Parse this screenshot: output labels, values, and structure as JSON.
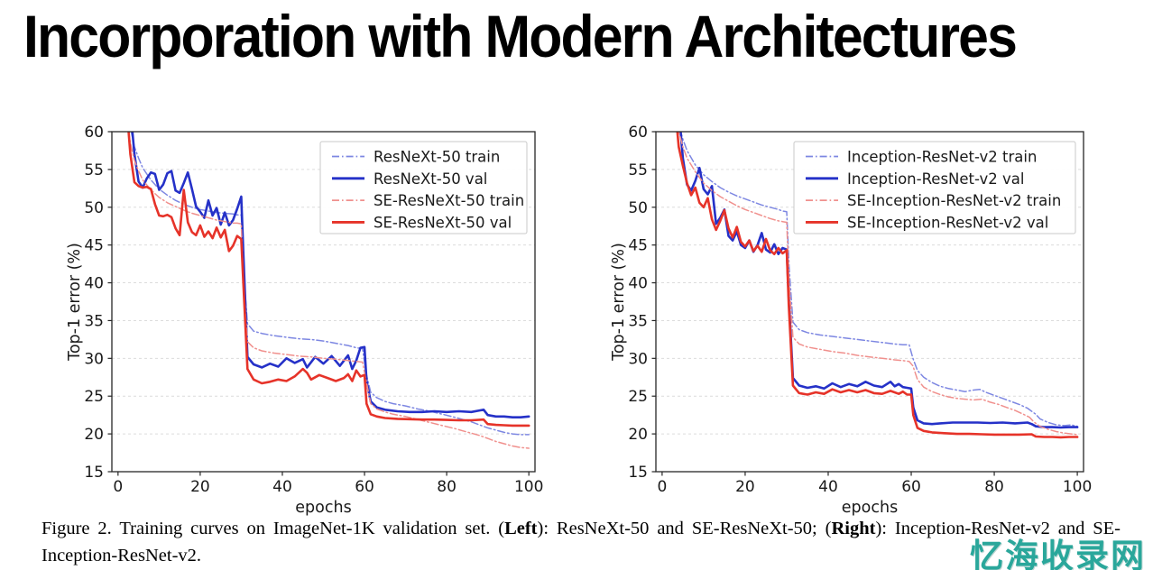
{
  "slide": {
    "title": "Incorporation with Modern Architectures"
  },
  "caption": {
    "parts": [
      {
        "text": "Figure 2. Training curves on ImageNet-1K validation set.  (",
        "bold": false
      },
      {
        "text": "Left",
        "bold": true
      },
      {
        "text": "):  ResNeXt-50 and SE-ResNeXt-50; (",
        "bold": false
      },
      {
        "text": "Right",
        "bold": true
      },
      {
        "text": "):  Inception-ResNet-v2 and SE-Inception-ResNet-v2.",
        "bold": false
      }
    ]
  },
  "watermark": {
    "text": "忆海收录网",
    "color": "#2aa79b"
  },
  "colors": {
    "val_blue": "#2531c8",
    "val_red": "#e63329",
    "train_blue": "#7d87e2",
    "train_red": "#f0908d",
    "grid": "#dcdcdc",
    "spine": "#262626",
    "tick_label": "#191919",
    "legend_border": "#c9c9c9",
    "legend_bg": "#ffffff"
  },
  "chart_data": [
    {
      "type": "line",
      "title": "",
      "xlabel": "epochs",
      "ylabel": "Top-1 error (%)",
      "xlim": [
        0,
        100
      ],
      "ylim": [
        15,
        60
      ],
      "xticks": [
        0,
        20,
        40,
        60,
        80,
        100
      ],
      "yticks": [
        15,
        20,
        25,
        30,
        35,
        40,
        45,
        50,
        55,
        60
      ],
      "grid": "horizontal-dashed",
      "legend_position": "upper-right",
      "series": [
        {
          "name": "ResNeXt-50 train",
          "color": "#7d87e2",
          "line": "dashdot",
          "width": 1.5,
          "x": [
            2,
            3,
            4,
            5,
            6,
            8,
            10,
            12,
            14,
            16,
            18,
            20,
            22,
            24,
            26,
            28,
            29,
            30,
            30.6,
            31.5,
            33,
            35,
            38,
            41,
            44,
            47,
            50,
            53,
            56,
            58,
            59.5,
            60.4,
            61.5,
            63,
            65,
            67,
            70,
            73,
            76,
            79,
            82,
            84,
            86,
            88,
            90,
            92,
            94,
            96,
            98,
            100
          ],
          "y": [
            64,
            60.5,
            58,
            56.5,
            55.2,
            53.6,
            52.4,
            51.6,
            50.9,
            50.4,
            50.0,
            49.7,
            49.5,
            49.3,
            49.2,
            49.1,
            49.0,
            49.0,
            41,
            34.6,
            33.6,
            33.3,
            33.0,
            32.8,
            32.6,
            32.5,
            32.3,
            32.0,
            31.7,
            31.4,
            31.3,
            28,
            25.5,
            24.8,
            24.3,
            24.0,
            23.7,
            23.3,
            23.0,
            22.6,
            22.2,
            21.9,
            21.6,
            21.2,
            20.8,
            20.5,
            20.2,
            20.0,
            19.9,
            19.9
          ]
        },
        {
          "name": "ResNeXt-50 val",
          "color": "#2531c8",
          "line": "solid",
          "width": 2.6,
          "x": [
            3,
            4,
            5,
            6,
            7,
            8,
            9,
            10,
            11,
            12,
            13,
            14,
            15,
            16,
            17,
            18,
            19,
            20,
            21,
            22,
            23,
            24,
            25,
            26,
            27,
            28,
            29,
            30,
            30.5,
            31.5,
            33,
            35,
            37,
            39,
            41,
            43,
            45,
            46,
            48,
            50,
            52,
            54,
            56,
            57,
            58,
            59,
            60,
            60.5,
            61.5,
            63,
            65,
            68,
            71,
            74,
            77,
            80,
            83,
            86,
            88,
            89,
            90,
            92,
            94,
            96,
            98,
            100
          ],
          "y": [
            63,
            57,
            53.4,
            52.6,
            53.8,
            54.6,
            54.4,
            52.3,
            53.0,
            54.5,
            54.8,
            52.2,
            51.9,
            53.2,
            54.6,
            52.4,
            50.1,
            49.4,
            48.6,
            50.9,
            48.9,
            49.9,
            47.7,
            49.3,
            47.6,
            48.3,
            49.8,
            51.4,
            44,
            30.2,
            29.2,
            28.8,
            29.3,
            28.9,
            30.0,
            29.4,
            29.9,
            28.8,
            30.2,
            29.3,
            30.3,
            29.0,
            30.4,
            28.6,
            29.7,
            31.4,
            31.5,
            27,
            24.3,
            23.5,
            23.2,
            23.0,
            22.9,
            22.9,
            23.0,
            22.9,
            23.0,
            22.9,
            23.1,
            23.2,
            22.5,
            22.3,
            22.3,
            22.2,
            22.2,
            22.3
          ]
        },
        {
          "name": "SE-ResNeXt-50 train",
          "color": "#f0908d",
          "line": "dashdot",
          "width": 1.5,
          "x": [
            2,
            3,
            4,
            5,
            6,
            8,
            10,
            12,
            14,
            16,
            18,
            20,
            22,
            24,
            26,
            28,
            29,
            30,
            30.6,
            31.5,
            33,
            35,
            38,
            41,
            44,
            47,
            50,
            53,
            56,
            58,
            59.5,
            60.4,
            61.5,
            63,
            65,
            67,
            70,
            73,
            76,
            79,
            82,
            84,
            86,
            88,
            90,
            92,
            94,
            96,
            98,
            100
          ],
          "y": [
            62,
            58.5,
            56.2,
            54.8,
            53.6,
            52.3,
            51.3,
            50.6,
            50.1,
            49.6,
            49.2,
            48.9,
            48.6,
            48.3,
            48.1,
            47.9,
            47.9,
            47.8,
            39,
            32.2,
            31.4,
            31.0,
            30.7,
            30.5,
            30.3,
            30.2,
            30.0,
            29.9,
            29.7,
            29.6,
            29.5,
            27,
            24.0,
            23.3,
            22.9,
            22.6,
            22.3,
            21.9,
            21.5,
            21.1,
            20.7,
            20.4,
            20.1,
            19.8,
            19.4,
            19.0,
            18.7,
            18.4,
            18.2,
            18.1
          ]
        },
        {
          "name": "SE-ResNeXt-50 val",
          "color": "#e63329",
          "line": "solid",
          "width": 2.6,
          "x": [
            2,
            3,
            4,
            5,
            6,
            7,
            8,
            9,
            10,
            11,
            12,
            13,
            14,
            15,
            16,
            17,
            18,
            19,
            20,
            21,
            22,
            23,
            24,
            25,
            26,
            27,
            28,
            29,
            30,
            30.5,
            31.5,
            33,
            35,
            37,
            39,
            41,
            43,
            45,
            46,
            47,
            49,
            51,
            53,
            55,
            56,
            57,
            58,
            59,
            60,
            60.5,
            61.5,
            63,
            65,
            68,
            71,
            74,
            77,
            80,
            83,
            86,
            89,
            90,
            92,
            94,
            96,
            98,
            100
          ],
          "y": [
            64,
            57,
            53.3,
            52.8,
            52.6,
            52.7,
            52.4,
            50.4,
            48.9,
            48.8,
            49.0,
            48.7,
            47.2,
            46.3,
            52.3,
            48.0,
            46.7,
            46.3,
            47.6,
            46.1,
            46.8,
            45.9,
            47.3,
            46.0,
            47.0,
            44.2,
            44.9,
            46.2,
            45.8,
            40,
            28.6,
            27.2,
            26.7,
            26.9,
            27.2,
            27.0,
            27.6,
            28.6,
            28.1,
            27.2,
            27.8,
            27.4,
            27.0,
            27.4,
            27.9,
            27.0,
            28.4,
            27.6,
            27.8,
            24,
            22.6,
            22.3,
            22.1,
            22.0,
            21.95,
            21.9,
            21.9,
            21.85,
            21.8,
            21.8,
            21.9,
            21.3,
            21.2,
            21.15,
            21.1,
            21.1,
            21.1
          ]
        }
      ]
    },
    {
      "type": "line",
      "title": "",
      "xlabel": "epochs",
      "ylabel": "Top-1 error (%)",
      "xlim": [
        0,
        100
      ],
      "ylim": [
        15,
        60
      ],
      "xticks": [
        0,
        20,
        40,
        60,
        80,
        100
      ],
      "yticks": [
        15,
        20,
        25,
        30,
        35,
        40,
        45,
        50,
        55,
        60
      ],
      "grid": "horizontal-dashed",
      "legend_position": "upper-right",
      "series": [
        {
          "name": "Inception-ResNet-v2 train",
          "color": "#7d87e2",
          "line": "dashdot",
          "width": 1.5,
          "x": [
            3,
            4,
            5,
            6,
            8,
            10,
            12,
            14,
            16,
            18,
            20,
            22,
            24,
            26,
            28,
            29,
            30,
            30.6,
            31.5,
            33,
            35,
            38,
            41,
            44,
            47,
            50,
            53,
            56,
            58,
            59.5,
            60.4,
            61.5,
            63,
            65,
            67,
            69,
            71,
            73,
            75,
            76.5,
            78,
            80,
            82,
            84,
            86,
            88,
            89,
            90,
            91,
            93,
            95,
            97,
            98.5,
            100
          ],
          "y": [
            64,
            61,
            59,
            57.5,
            55.6,
            54.3,
            53.4,
            52.6,
            52.0,
            51.5,
            51.1,
            50.7,
            50.3,
            50.0,
            49.7,
            49.5,
            49.4,
            42,
            34.8,
            33.8,
            33.4,
            33.1,
            32.9,
            32.7,
            32.5,
            32.3,
            32.1,
            31.9,
            31.8,
            31.8,
            30,
            28.4,
            27.5,
            26.8,
            26.3,
            26.0,
            25.8,
            25.6,
            25.8,
            25.9,
            25.5,
            25.1,
            24.7,
            24.3,
            23.9,
            23.4,
            23.0,
            22.6,
            22.0,
            21.5,
            21.2,
            21.1,
            21.2,
            21.0
          ]
        },
        {
          "name": "Inception-ResNet-v2 val",
          "color": "#2531c8",
          "line": "solid",
          "width": 2.6,
          "x": [
            4,
            5,
            6,
            7,
            8,
            9,
            10,
            11,
            12,
            13,
            14,
            15,
            16,
            17,
            18,
            19,
            20,
            21,
            22,
            23,
            24,
            25,
            26,
            27,
            28,
            29,
            30,
            30.5,
            31.5,
            33,
            35,
            37,
            39,
            41,
            43,
            45,
            47,
            49,
            51,
            53,
            55,
            56,
            57,
            58,
            59,
            60,
            60.5,
            61.5,
            63,
            65,
            67,
            70,
            73,
            76,
            79,
            82,
            85,
            88,
            89,
            90,
            92,
            94,
            96,
            98,
            100
          ],
          "y": [
            63,
            56.5,
            53.0,
            52.2,
            53.5,
            55.2,
            52.4,
            51.7,
            52.8,
            47.8,
            48.6,
            49.7,
            46.2,
            45.6,
            46.8,
            45.0,
            44.6,
            45.6,
            44.1,
            45.0,
            46.6,
            44.4,
            44.0,
            45.1,
            43.8,
            44.6,
            44.4,
            38,
            27.4,
            26.4,
            26.1,
            26.3,
            26.0,
            26.7,
            26.2,
            26.6,
            26.3,
            26.9,
            26.4,
            26.2,
            26.9,
            26.3,
            26.6,
            26.2,
            26.1,
            26.0,
            23.5,
            21.8,
            21.4,
            21.3,
            21.4,
            21.5,
            21.5,
            21.5,
            21.45,
            21.5,
            21.4,
            21.5,
            21.3,
            21.0,
            20.9,
            20.9,
            20.85,
            20.9,
            20.9
          ]
        },
        {
          "name": "SE-Inception-ResNet-v2 train",
          "color": "#f0908d",
          "line": "dashdot",
          "width": 1.5,
          "x": [
            3,
            4,
            5,
            6,
            8,
            10,
            12,
            14,
            16,
            18,
            20,
            22,
            24,
            26,
            28,
            29,
            30,
            30.6,
            31.5,
            33,
            35,
            38,
            41,
            44,
            47,
            50,
            53,
            56,
            58,
            59.5,
            60.4,
            61.5,
            63,
            65,
            67,
            69,
            71,
            73,
            75,
            77,
            79,
            81,
            83,
            85,
            87,
            88.5,
            89.5,
            91,
            93,
            95,
            97,
            98.5,
            100
          ],
          "y": [
            63,
            60,
            58,
            56.5,
            54.7,
            53.2,
            52.2,
            51.4,
            50.8,
            50.2,
            49.7,
            49.3,
            48.9,
            48.5,
            48.2,
            48.1,
            48.0,
            40,
            32.8,
            31.9,
            31.5,
            31.2,
            30.9,
            30.7,
            30.4,
            30.2,
            30.0,
            29.8,
            29.7,
            29.6,
            29,
            27.2,
            26.2,
            25.6,
            25.2,
            24.9,
            24.7,
            24.6,
            24.5,
            24.6,
            24.2,
            23.9,
            23.5,
            23.1,
            22.6,
            22.2,
            21.6,
            21.0,
            20.6,
            20.3,
            20.1,
            20.0,
            19.9
          ]
        },
        {
          "name": "SE-Inception-ResNet-v2 val",
          "color": "#e63329",
          "line": "solid",
          "width": 2.6,
          "x": [
            3,
            4,
            5,
            6,
            7,
            8,
            9,
            10,
            11,
            12,
            13,
            14,
            15,
            16,
            17,
            18,
            19,
            20,
            21,
            22,
            23,
            24,
            25,
            26,
            27,
            28,
            29,
            30,
            30.5,
            31.5,
            33,
            35,
            37,
            39,
            41,
            43,
            45,
            47,
            49,
            51,
            53,
            55,
            57,
            58,
            59,
            60,
            60.5,
            61.5,
            63,
            65,
            68,
            71,
            74,
            77,
            80,
            83,
            86,
            89,
            90,
            92,
            94,
            96,
            98,
            100
          ],
          "y": [
            64,
            58,
            55.5,
            53.2,
            51.6,
            52.6,
            50.6,
            50.0,
            51.2,
            48.4,
            47.0,
            48.2,
            49.6,
            47.2,
            46.0,
            47.4,
            45.4,
            44.8,
            45.6,
            44.2,
            44.9,
            44.1,
            45.8,
            44.3,
            43.8,
            44.6,
            43.9,
            44.3,
            37,
            26.4,
            25.4,
            25.2,
            25.5,
            25.3,
            25.9,
            25.5,
            25.8,
            25.5,
            25.8,
            25.4,
            25.3,
            25.7,
            25.3,
            25.6,
            25.2,
            25.2,
            22.5,
            20.8,
            20.4,
            20.2,
            20.1,
            20.0,
            20.0,
            19.95,
            19.9,
            19.9,
            19.9,
            19.95,
            19.65,
            19.6,
            19.6,
            19.55,
            19.6,
            19.6
          ]
        }
      ]
    }
  ]
}
